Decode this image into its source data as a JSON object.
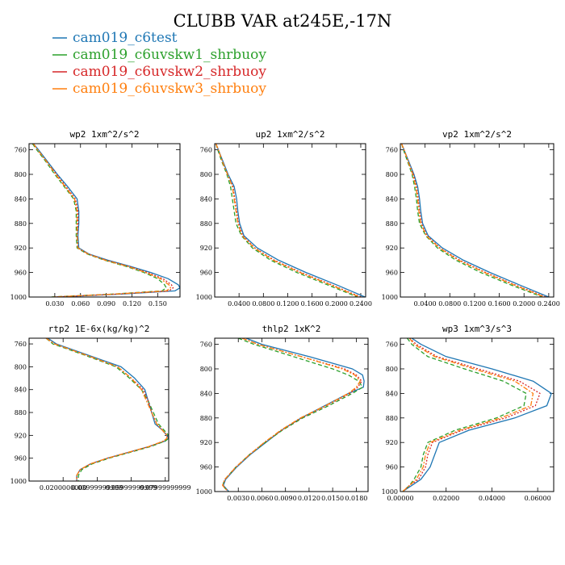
{
  "figure": {
    "title": "CLUBB VAR at245E,-17N",
    "colors": {
      "cam019_c6test": "#1f77b4",
      "cam019_c6uvskw1_shrbuoy": "#2ca02c",
      "cam019_c6uvskw2_shrbuoy": "#d62728",
      "cam019_c6uvskw3_shrbuoy": "#ff7f0e"
    }
  },
  "legend": [
    {
      "name": "cam019_c6test",
      "color": "#1f77b4",
      "dash": ""
    },
    {
      "name": "cam019_c6uvskw1_shrbuoy",
      "color": "#2ca02c",
      "dash": "5,3"
    },
    {
      "name": "cam019_c6uvskw2_shrbuoy",
      "color": "#d62728",
      "dash": "2,2"
    },
    {
      "name": "cam019_c6uvskw3_shrbuoy",
      "color": "#ff7f0e",
      "dash": "6,2,2,2"
    }
  ],
  "chart_data": [
    {
      "type": "line",
      "title": "wp2  1xm^2/s^2",
      "xlim": [
        0,
        0.176
      ],
      "ylim": [
        1000,
        750
      ],
      "xticks": [
        0.03,
        0.06,
        0.09,
        0.12,
        0.15
      ],
      "xtick_labels": [
        "0.030",
        "0.060",
        "0.090",
        "0.120",
        "0.150"
      ],
      "yticks": [
        760,
        800,
        840,
        880,
        920,
        960,
        1000
      ],
      "ytick_labels": [
        "760",
        "800",
        "840",
        "880",
        "920",
        "960",
        "1000"
      ],
      "y": [
        750,
        760,
        780,
        800,
        820,
        840,
        860,
        880,
        900,
        920,
        930,
        940,
        950,
        960,
        970,
        980,
        985,
        990,
        995,
        1000
      ],
      "series": [
        {
          "name": "cam019_c6test",
          "values": [
            0.005,
            0.011,
            0.022,
            0.033,
            0.045,
            0.056,
            0.058,
            0.058,
            0.057,
            0.058,
            0.07,
            0.092,
            0.118,
            0.142,
            0.162,
            0.174,
            0.176,
            0.17,
            0.11,
            0.03
          ]
        },
        {
          "name": "cam019_c6uvskw1_shrbuoy",
          "values": [
            0.004,
            0.009,
            0.02,
            0.03,
            0.041,
            0.052,
            0.055,
            0.055,
            0.055,
            0.056,
            0.068,
            0.088,
            0.113,
            0.134,
            0.15,
            0.158,
            0.16,
            0.155,
            0.1,
            0.025
          ]
        },
        {
          "name": "cam019_c6uvskw2_shrbuoy",
          "values": [
            0.005,
            0.01,
            0.021,
            0.032,
            0.043,
            0.054,
            0.057,
            0.057,
            0.056,
            0.057,
            0.069,
            0.09,
            0.116,
            0.138,
            0.156,
            0.166,
            0.168,
            0.163,
            0.105,
            0.028
          ]
        },
        {
          "name": "cam019_c6uvskw3_shrbuoy",
          "values": [
            0.005,
            0.01,
            0.021,
            0.031,
            0.042,
            0.053,
            0.056,
            0.056,
            0.056,
            0.057,
            0.069,
            0.089,
            0.115,
            0.136,
            0.153,
            0.163,
            0.165,
            0.16,
            0.103,
            0.027
          ]
        }
      ]
    },
    {
      "type": "line",
      "title": "up2  1xm^2/s^2",
      "xlim": [
        0,
        0.248
      ],
      "ylim": [
        1000,
        750
      ],
      "xticks": [
        0.04,
        0.08,
        0.12,
        0.16,
        0.2,
        0.24
      ],
      "xtick_labels": [
        "0.0400",
        "0.0800",
        "0.1200",
        "0.1600",
        "0.2000",
        "0.2400"
      ],
      "yticks": [
        760,
        800,
        840,
        880,
        920,
        960,
        1000
      ],
      "ytick_labels": [
        "760",
        "800",
        "840",
        "880",
        "920",
        "960",
        "1000"
      ],
      "y": [
        750,
        760,
        780,
        800,
        820,
        840,
        860,
        880,
        900,
        920,
        940,
        960,
        980,
        1000
      ],
      "series": [
        {
          "name": "cam019_c6test",
          "values": [
            0.002,
            0.006,
            0.014,
            0.022,
            0.032,
            0.036,
            0.038,
            0.041,
            0.048,
            0.07,
            0.105,
            0.15,
            0.2,
            0.247
          ]
        },
        {
          "name": "cam019_c6uvskw1_shrbuoy",
          "values": [
            0.002,
            0.005,
            0.012,
            0.02,
            0.026,
            0.029,
            0.032,
            0.035,
            0.044,
            0.062,
            0.092,
            0.135,
            0.185,
            0.235
          ]
        },
        {
          "name": "cam019_c6uvskw2_shrbuoy",
          "values": [
            0.002,
            0.006,
            0.013,
            0.021,
            0.03,
            0.033,
            0.036,
            0.039,
            0.046,
            0.066,
            0.098,
            0.142,
            0.192,
            0.24
          ]
        },
        {
          "name": "cam019_c6uvskw3_shrbuoy",
          "values": [
            0.002,
            0.006,
            0.013,
            0.021,
            0.029,
            0.032,
            0.035,
            0.038,
            0.045,
            0.065,
            0.096,
            0.14,
            0.19,
            0.238
          ]
        }
      ]
    },
    {
      "type": "line",
      "title": "vp2  1xm^2/s^2",
      "xlim": [
        0,
        0.248
      ],
      "ylim": [
        1000,
        750
      ],
      "xticks": [
        0.04,
        0.08,
        0.12,
        0.16,
        0.2,
        0.24
      ],
      "xtick_labels": [
        "0.0400",
        "0.0800",
        "0.1200",
        "0.1600",
        "0.2000",
        "0.2400"
      ],
      "yticks": [
        760,
        800,
        840,
        880,
        920,
        960,
        1000
      ],
      "ytick_labels": [
        "760",
        "800",
        "840",
        "880",
        "920",
        "960",
        "1000"
      ],
      "y": [
        750,
        760,
        780,
        800,
        820,
        840,
        860,
        880,
        900,
        920,
        940,
        960,
        980,
        1000
      ],
      "series": [
        {
          "name": "cam019_c6test",
          "values": [
            0.002,
            0.006,
            0.014,
            0.022,
            0.028,
            0.031,
            0.033,
            0.036,
            0.045,
            0.068,
            0.102,
            0.145,
            0.192,
            0.24
          ]
        },
        {
          "name": "cam019_c6uvskw1_shrbuoy",
          "values": [
            0.002,
            0.005,
            0.012,
            0.019,
            0.023,
            0.026,
            0.028,
            0.031,
            0.041,
            0.06,
            0.09,
            0.13,
            0.178,
            0.23
          ]
        },
        {
          "name": "cam019_c6uvskw2_shrbuoy",
          "values": [
            0.002,
            0.006,
            0.013,
            0.021,
            0.026,
            0.029,
            0.031,
            0.034,
            0.043,
            0.064,
            0.096,
            0.138,
            0.185,
            0.235
          ]
        },
        {
          "name": "cam019_c6uvskw3_shrbuoy",
          "values": [
            0.002,
            0.006,
            0.013,
            0.02,
            0.025,
            0.028,
            0.03,
            0.033,
            0.042,
            0.063,
            0.094,
            0.136,
            0.183,
            0.233
          ]
        }
      ]
    },
    {
      "type": "line",
      "title": "rtp2  1E-6x(kg/kg)^2",
      "xlim": [
        0.0,
        0.082
      ],
      "ylim": [
        1000,
        750
      ],
      "xticks": [
        0.02,
        0.04,
        0.06,
        0.08
      ],
      "xtick_labels": [
        "0.0200000000",
        "0.03999999999",
        "0.05999999999",
        "0.07999999999"
      ],
      "yticks": [
        760,
        800,
        840,
        880,
        920,
        960,
        1000
      ],
      "ytick_labels": [
        "760",
        "800",
        "840",
        "880",
        "920",
        "960",
        "1000"
      ],
      "y": [
        750,
        760,
        780,
        800,
        820,
        840,
        860,
        880,
        900,
        910,
        920,
        925,
        930,
        940,
        950,
        960,
        970,
        980,
        990,
        1000
      ],
      "series": [
        {
          "name": "cam019_c6test",
          "values": [
            0.011,
            0.016,
            0.035,
            0.054,
            0.062,
            0.068,
            0.07,
            0.072,
            0.074,
            0.078,
            0.081,
            0.082,
            0.08,
            0.07,
            0.058,
            0.046,
            0.036,
            0.03,
            0.028,
            0.028
          ]
        },
        {
          "name": "cam019_c6uvskw1_shrbuoy",
          "values": [
            0.01,
            0.014,
            0.033,
            0.051,
            0.059,
            0.066,
            0.07,
            0.073,
            0.076,
            0.079,
            0.082,
            0.082,
            0.08,
            0.071,
            0.059,
            0.047,
            0.037,
            0.031,
            0.029,
            0.029
          ]
        },
        {
          "name": "cam019_c6uvskw2_shrbuoy",
          "values": [
            0.01,
            0.015,
            0.034,
            0.052,
            0.06,
            0.067,
            0.07,
            0.072,
            0.075,
            0.078,
            0.081,
            0.081,
            0.079,
            0.07,
            0.058,
            0.046,
            0.036,
            0.03,
            0.028,
            0.028
          ]
        },
        {
          "name": "cam019_c6uvskw3_shrbuoy",
          "values": [
            0.01,
            0.015,
            0.034,
            0.052,
            0.06,
            0.066,
            0.069,
            0.072,
            0.075,
            0.078,
            0.081,
            0.081,
            0.079,
            0.07,
            0.058,
            0.046,
            0.036,
            0.03,
            0.028,
            0.028
          ]
        }
      ]
    },
    {
      "type": "line",
      "title": "thlp2  1xK^2",
      "xlim": [
        0,
        0.0195
      ],
      "ylim": [
        1000,
        750
      ],
      "xticks": [
        0.003,
        0.006,
        0.009,
        0.012,
        0.015,
        0.018
      ],
      "xtick_labels": [
        "0.0030",
        "0.0060",
        "0.0090",
        "0.0120",
        "0.0150",
        "0.0180"
      ],
      "yticks": [
        760,
        800,
        840,
        880,
        920,
        960,
        1000
      ],
      "ytick_labels": [
        "760",
        "800",
        "840",
        "880",
        "920",
        "960",
        "1000"
      ],
      "y": [
        750,
        760,
        780,
        800,
        810,
        820,
        830,
        840,
        860,
        880,
        900,
        920,
        940,
        960,
        980,
        990,
        1000
      ],
      "series": [
        {
          "name": "cam019_c6test",
          "values": [
            0.004,
            0.006,
            0.012,
            0.0175,
            0.0188,
            0.019,
            0.0189,
            0.017,
            0.014,
            0.011,
            0.0085,
            0.0065,
            0.0045,
            0.0028,
            0.0014,
            0.0011,
            0.0018
          ]
        },
        {
          "name": "cam019_c6uvskw1_shrbuoy",
          "values": [
            0.003,
            0.005,
            0.01,
            0.015,
            0.017,
            0.0183,
            0.0188,
            0.0175,
            0.0145,
            0.0112,
            0.0086,
            0.0064,
            0.0044,
            0.0027,
            0.0013,
            0.001,
            0.0017
          ]
        },
        {
          "name": "cam019_c6uvskw2_shrbuoy",
          "values": [
            0.0035,
            0.0055,
            0.011,
            0.0165,
            0.018,
            0.0187,
            0.0182,
            0.0172,
            0.0142,
            0.011,
            0.0085,
            0.0063,
            0.0044,
            0.0027,
            0.0013,
            0.001,
            0.0017
          ]
        },
        {
          "name": "cam019_c6uvskw3_shrbuoy",
          "values": [
            0.0035,
            0.0055,
            0.011,
            0.0162,
            0.0178,
            0.0185,
            0.018,
            0.017,
            0.0141,
            0.0109,
            0.0084,
            0.0063,
            0.0044,
            0.0027,
            0.0013,
            0.001,
            0.0017
          ]
        }
      ]
    },
    {
      "type": "line",
      "title": "wp3  1xm^3/s^3",
      "xlim": [
        0,
        0.067
      ],
      "ylim": [
        1000,
        750
      ],
      "xticks": [
        0.0,
        0.02,
        0.04,
        0.06
      ],
      "xtick_labels": [
        "0.00000",
        "0.02000",
        "0.04000",
        "0.06000"
      ],
      "yticks": [
        760,
        800,
        840,
        880,
        920,
        960,
        1000
      ],
      "ytick_labels": [
        "760",
        "800",
        "840",
        "880",
        "920",
        "960",
        "1000"
      ],
      "y": [
        750,
        760,
        780,
        800,
        820,
        840,
        860,
        880,
        900,
        920,
        940,
        960,
        980,
        990,
        1000
      ],
      "series": [
        {
          "name": "cam019_c6test",
          "values": [
            0.005,
            0.009,
            0.02,
            0.04,
            0.058,
            0.066,
            0.064,
            0.05,
            0.03,
            0.017,
            0.015,
            0.013,
            0.009,
            0.005,
            0.001
          ]
        },
        {
          "name": "cam019_c6uvskw1_shrbuoy",
          "values": [
            0.003,
            0.005,
            0.012,
            0.028,
            0.045,
            0.055,
            0.054,
            0.042,
            0.024,
            0.012,
            0.01,
            0.009,
            0.006,
            0.004,
            0.001
          ]
        },
        {
          "name": "cam019_c6uvskw2_shrbuoy",
          "values": [
            0.004,
            0.007,
            0.016,
            0.034,
            0.052,
            0.061,
            0.059,
            0.046,
            0.027,
            0.014,
            0.012,
            0.011,
            0.008,
            0.004,
            0.001
          ]
        },
        {
          "name": "cam019_c6uvskw3_shrbuoy",
          "values": [
            0.004,
            0.006,
            0.015,
            0.032,
            0.05,
            0.058,
            0.057,
            0.044,
            0.026,
            0.013,
            0.011,
            0.01,
            0.007,
            0.004,
            0.001
          ]
        }
      ]
    }
  ]
}
